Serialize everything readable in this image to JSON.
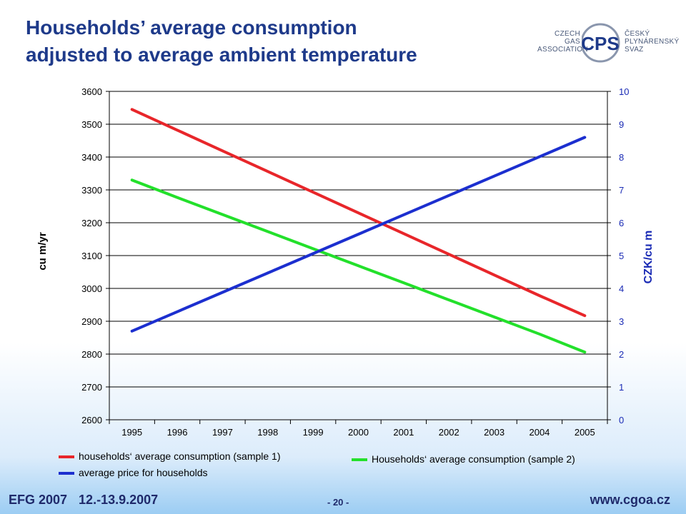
{
  "slide": {
    "title_line1": "Households’ average consumption",
    "title_line2": "adjusted to average ambient temperature"
  },
  "logo": {
    "left_lines": [
      "CZECH",
      "GAS",
      "ASSOCIATION"
    ],
    "right_lines": [
      "ČESKÝ",
      "PLYNÁRENSKÝ",
      "SVAZ"
    ],
    "mark_text": "CPS",
    "colors": {
      "primary": "#1e3a8a",
      "secondary": "#8a96ad"
    }
  },
  "chart_data": {
    "type": "line",
    "categories": [
      "1995",
      "1996",
      "1997",
      "1998",
      "1999",
      "2000",
      "2001",
      "2002",
      "2003",
      "2004",
      "2005"
    ],
    "y_left": {
      "label": "cu m/yr",
      "min": 2600,
      "max": 3600,
      "ticks": [
        2600,
        2700,
        2800,
        2900,
        3000,
        3100,
        3200,
        3300,
        3400,
        3500,
        3600
      ]
    },
    "y_right": {
      "label": "CZK/cu m",
      "min": 0,
      "max": 10,
      "ticks": [
        0,
        1,
        2,
        3,
        4,
        5,
        6,
        7,
        8,
        9,
        10
      ],
      "color": "#1a2bb5"
    },
    "grid": true,
    "series": [
      {
        "name": "households‘ average consumption (sample 1)",
        "axis": "left",
        "color": "#e8262a",
        "values": [
          3545,
          3482,
          3419,
          3356,
          3293,
          3230,
          3167,
          3104,
          3041,
          2978,
          2917
        ]
      },
      {
        "name": "Households‘ average consumption (sample 2)",
        "axis": "left",
        "color": "#23e02b",
        "values": [
          3330,
          3277,
          3225,
          3173,
          3121,
          3069,
          3017,
          2965,
          2913,
          2861,
          2806
        ]
      },
      {
        "name": "average price for households",
        "axis": "right",
        "color": "#1c2fcf",
        "values": [
          2.7,
          3.29,
          3.88,
          4.47,
          5.06,
          5.65,
          6.24,
          6.83,
          7.42,
          8.01,
          8.6
        ]
      }
    ],
    "legend_position": "bottom"
  },
  "footer": {
    "event": "EFG 2007",
    "dates": "12.-13.9.2007",
    "page": "- 20 -",
    "url": "www.cgoa.cz"
  }
}
